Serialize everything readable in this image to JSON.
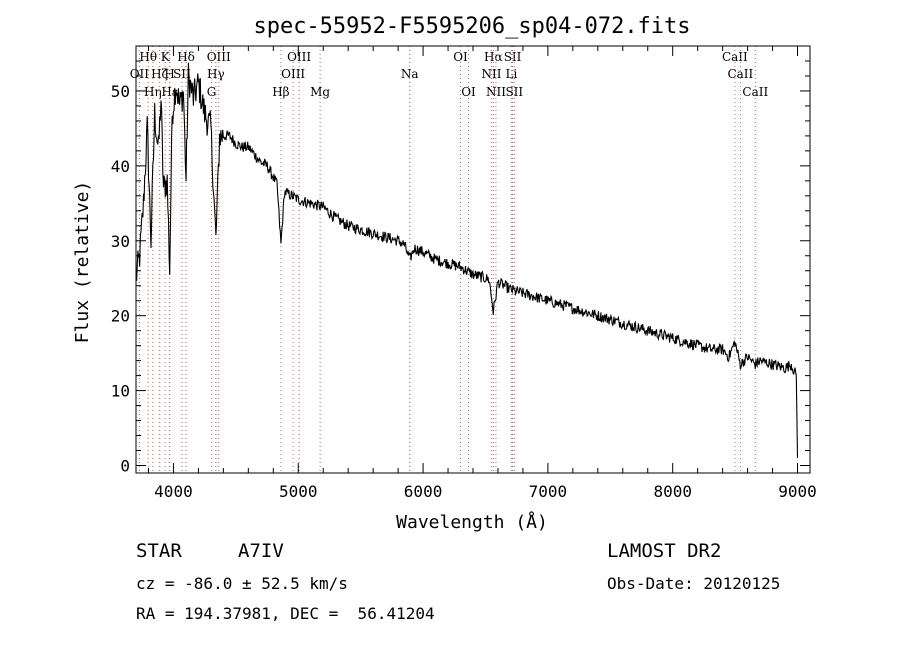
{
  "chart_data": {
    "type": "line",
    "title": "spec-55952-F5595206_sp04-072.fits",
    "xlabel": "Wavelength (Å)",
    "ylabel": "Flux (relative)",
    "xlim": [
      3700,
      9100
    ],
    "ylim": [
      -1,
      56
    ],
    "xticks": [
      4000,
      5000,
      6000,
      7000,
      8000,
      9000
    ],
    "yticks": [
      0,
      10,
      20,
      30,
      40,
      50
    ],
    "series": [
      {
        "name": "spectrum",
        "x": [
          3700,
          3730,
          3760,
          3790,
          3820,
          3850,
          3880,
          3900,
          3920,
          3950,
          3970,
          3990,
          4020,
          4050,
          4080,
          4101,
          4120,
          4160,
          4200,
          4250,
          4300,
          4340,
          4370,
          4400,
          4450,
          4500,
          4550,
          4600,
          4650,
          4700,
          4750,
          4800,
          4830,
          4861,
          4890,
          4950,
          5000,
          5100,
          5200,
          5300,
          5400,
          5500,
          5600,
          5700,
          5800,
          5850,
          5893,
          5930,
          6000,
          6100,
          6200,
          6300,
          6400,
          6500,
          6530,
          6563,
          6600,
          6650,
          6700,
          6800,
          6900,
          7000,
          7100,
          7200,
          7300,
          7400,
          7500,
          7600,
          7700,
          7800,
          7900,
          8000,
          8100,
          8200,
          8300,
          8400,
          8450,
          8498,
          8542,
          8600,
          8662,
          8700,
          8800,
          8900,
          8950,
          8990,
          9000
        ],
        "y": [
          25,
          28,
          35,
          45,
          30,
          47,
          42,
          49,
          37,
          38,
          26,
          47,
          51,
          48,
          50,
          38,
          52,
          49,
          51,
          47,
          45,
          30,
          44,
          44,
          44,
          43,
          42.5,
          42.5,
          41.5,
          40.5,
          40,
          38.5,
          37.5,
          29.5,
          36.5,
          36,
          35.5,
          35,
          34.5,
          33,
          32,
          31.5,
          31,
          30.5,
          30,
          29.5,
          27.5,
          29,
          28.5,
          27.5,
          27,
          26.5,
          25.5,
          25,
          24.8,
          20.5,
          24.5,
          24,
          23.5,
          23,
          22.5,
          22,
          21.5,
          21,
          20.5,
          20,
          19.5,
          19,
          18.5,
          18,
          17.5,
          17,
          16.5,
          16,
          15.5,
          15.5,
          14.5,
          16.5,
          13.5,
          14.5,
          13.5,
          14,
          13.5,
          13,
          13.5,
          12,
          1
        ]
      }
    ],
    "line_markers": [
      {
        "label": "Hθ",
        "wave": 3798,
        "row": 1,
        "offset": 0
      },
      {
        "label": "OII",
        "wave": 3727,
        "row": 2,
        "offset": 0
      },
      {
        "label": "Hη",
        "wave": 3835,
        "row": 3,
        "offset": 0
      },
      {
        "label": "K",
        "wave": 3934,
        "row": 1,
        "offset": 0
      },
      {
        "label": "H",
        "wave": 3969,
        "row": 2,
        "offset": 0
      },
      {
        "label": "Hζ",
        "wave": 3889,
        "row": 2,
        "offset": 0
      },
      {
        "label": "Hε",
        "wave": 3970,
        "row": 3,
        "offset": 0
      },
      {
        "label": "SII",
        "wave": 4068,
        "row": 2,
        "offset": 0
      },
      {
        "label": "Hδ",
        "wave": 4101,
        "row": 1,
        "offset": 0
      },
      {
        "label": "G",
        "wave": 4305,
        "row": 3,
        "offset": 0
      },
      {
        "label": "OIII",
        "wave": 4363,
        "row": 1,
        "offset": 0
      },
      {
        "label": "Hγ",
        "wave": 4340,
        "row": 2,
        "offset": 0
      },
      {
        "label": "Hβ",
        "wave": 4861,
        "row": 3,
        "offset": 0
      },
      {
        "label": "OIII",
        "wave": 5007,
        "row": 1,
        "offset": 0
      },
      {
        "label": "OIII",
        "wave": 4959,
        "row": 2,
        "offset": 0
      },
      {
        "label": "Mg",
        "wave": 5175,
        "row": 3,
        "offset": 0
      },
      {
        "label": "Na",
        "wave": 5893,
        "row": 2,
        "offset": 0
      },
      {
        "label": "OI",
        "wave": 6300,
        "row": 1,
        "offset": 0
      },
      {
        "label": "OI",
        "wave": 6364,
        "row": 3,
        "offset": 0
      },
      {
        "label": "Hα",
        "wave": 6563,
        "row": 1,
        "offset": 0
      },
      {
        "label": "SII",
        "wave": 6717,
        "row": 1,
        "offset": 0
      },
      {
        "label": "NII",
        "wave": 6548,
        "row": 2,
        "offset": 0
      },
      {
        "label": "Li",
        "wave": 6708,
        "row": 2,
        "offset": 0
      },
      {
        "label": "NII",
        "wave": 6584,
        "row": 3,
        "offset": 0
      },
      {
        "label": "SII",
        "wave": 6731,
        "row": 3,
        "offset": 0
      },
      {
        "label": "CaII",
        "wave": 8498,
        "row": 1,
        "offset": 0
      },
      {
        "label": "CaII",
        "wave": 8542,
        "row": 2,
        "offset": 0
      },
      {
        "label": "CaII",
        "wave": 8662,
        "row": 3,
        "offset": 0
      }
    ],
    "colors": {
      "spectrum": "#000000",
      "marker": "#c06060",
      "axes": "#000000"
    }
  },
  "info": {
    "class_label": "STAR",
    "subclass": "A7IV",
    "cz": "cz = -86.0 ± 52.5 km/s",
    "coords": "RA = 194.37981, DEC =  56.41204",
    "survey": "LAMOST DR2",
    "obs_date": "Obs-Date: 20120125"
  }
}
